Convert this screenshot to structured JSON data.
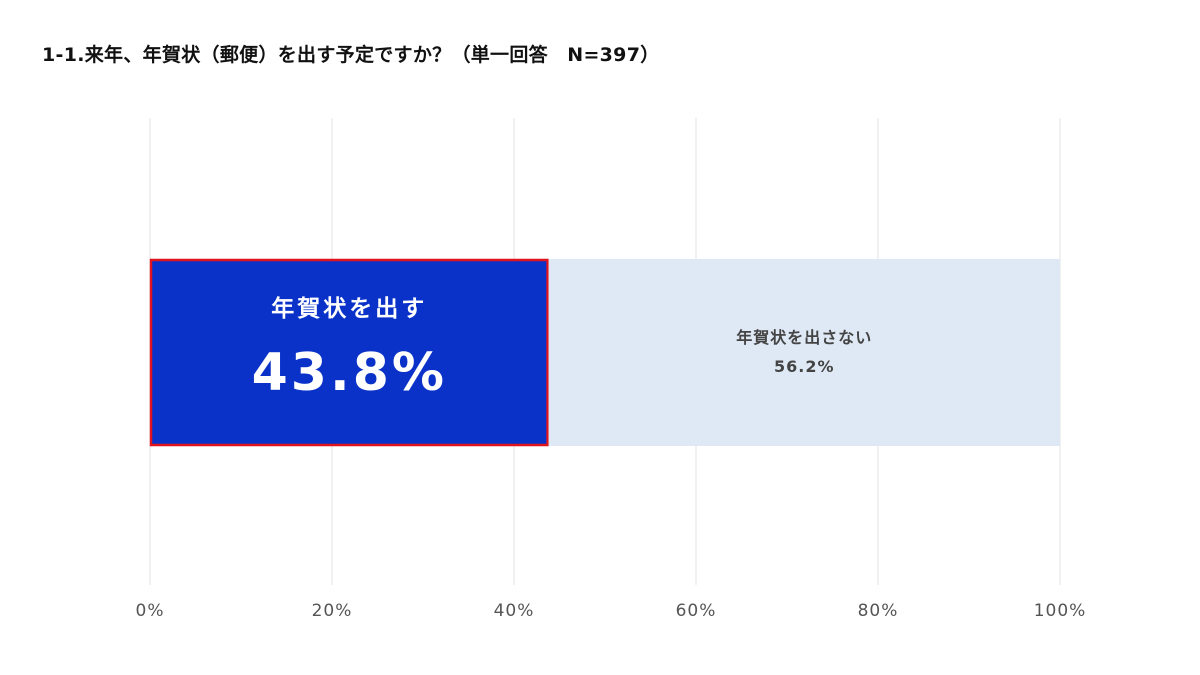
{
  "title": "1-1.来年、年賀状（郵便）を出す予定ですか？（単一回答　N=397）",
  "colors": {
    "highlight_fill": "#0a32c8",
    "highlight_border": "#e0141e",
    "other_fill": "#dfe9f5",
    "highlight_text": "#ffffff",
    "other_text": "#444444",
    "grid": "#e3e3e3",
    "tick_text": "#555555"
  },
  "chart_data": {
    "type": "bar",
    "orientation": "horizontal-stacked-100",
    "categories": [
      ""
    ],
    "series": [
      {
        "name": "年賀状を出す",
        "values": [
          43.8
        ],
        "label": "43.8%",
        "highlighted": true
      },
      {
        "name": "年賀状を出さない",
        "values": [
          56.2
        ],
        "label": "56.2%",
        "highlighted": false
      }
    ],
    "xlim": [
      0,
      100
    ],
    "x_ticks": [
      0,
      20,
      40,
      60,
      80,
      100
    ],
    "x_tick_labels": [
      "0%",
      "20%",
      "40%",
      "60%",
      "80%",
      "100%"
    ],
    "grid": true,
    "legend": "none",
    "xlabel": "",
    "ylabel": ""
  }
}
